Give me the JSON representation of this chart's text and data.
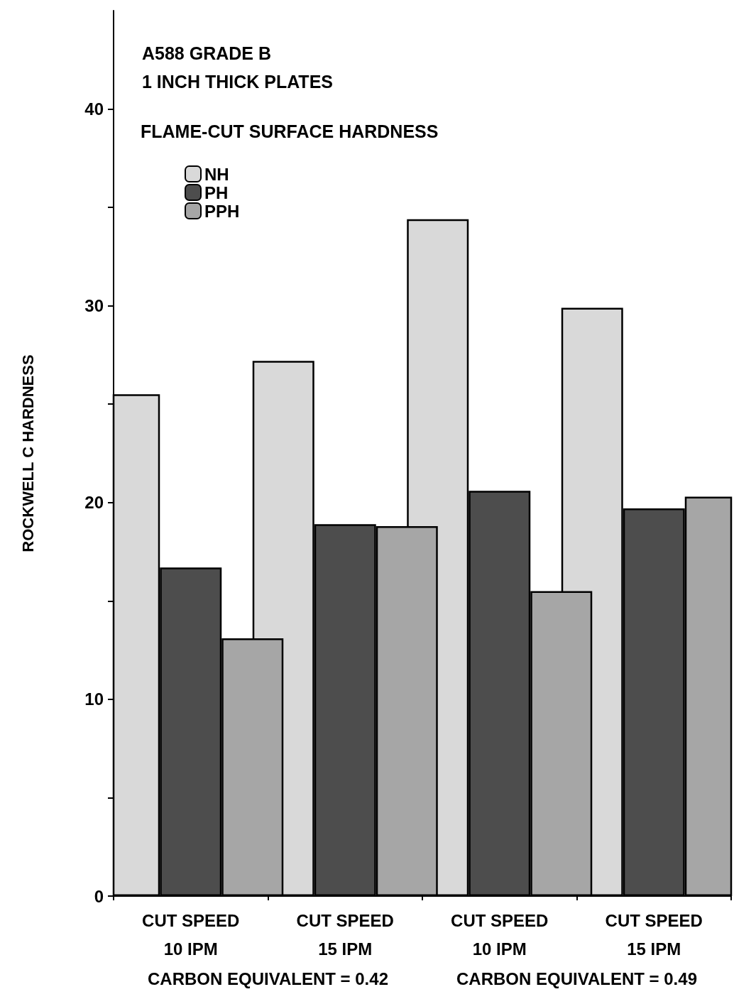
{
  "chart_data": {
    "type": "bar",
    "title": "A588 GRADE B",
    "subtitle": "1 INCH THICK PLATES",
    "legend_title": "FLAME-CUT SURFACE HARDNESS",
    "ylabel": "ROCKWELL C HARDNESS",
    "categories": [
      "CUT SPEED\n10 IPM",
      "CUT SPEED\n15 IPM",
      "CUT SPEED\n10 IPM",
      "CUT SPEED\n15 IPM"
    ],
    "series": [
      {
        "name": "NH",
        "color": "#d9d9d9",
        "values": [
          25.5,
          27.2,
          34.4,
          29.9
        ]
      },
      {
        "name": "PH",
        "color": "#4d4d4d",
        "values": [
          16.7,
          18.9,
          20.6,
          19.7
        ]
      },
      {
        "name": "PPH",
        "color": "#a6a6a6",
        "values": [
          13.1,
          18.8,
          15.5,
          20.3
        ]
      }
    ],
    "ylim": [
      0,
      45
    ],
    "yticks": [
      0,
      {
        "value": 5,
        "label": null
      },
      10,
      {
        "value": 15,
        "label": null
      },
      20,
      {
        "value": 25,
        "label": null
      },
      30,
      {
        "value": 35,
        "label": null
      },
      40
    ],
    "grid": false,
    "legend": "top left",
    "annotations": [
      "CARBON EQUIVALENT = 0.42",
      "CARBON EQUIVALENT = 0.49"
    ]
  }
}
